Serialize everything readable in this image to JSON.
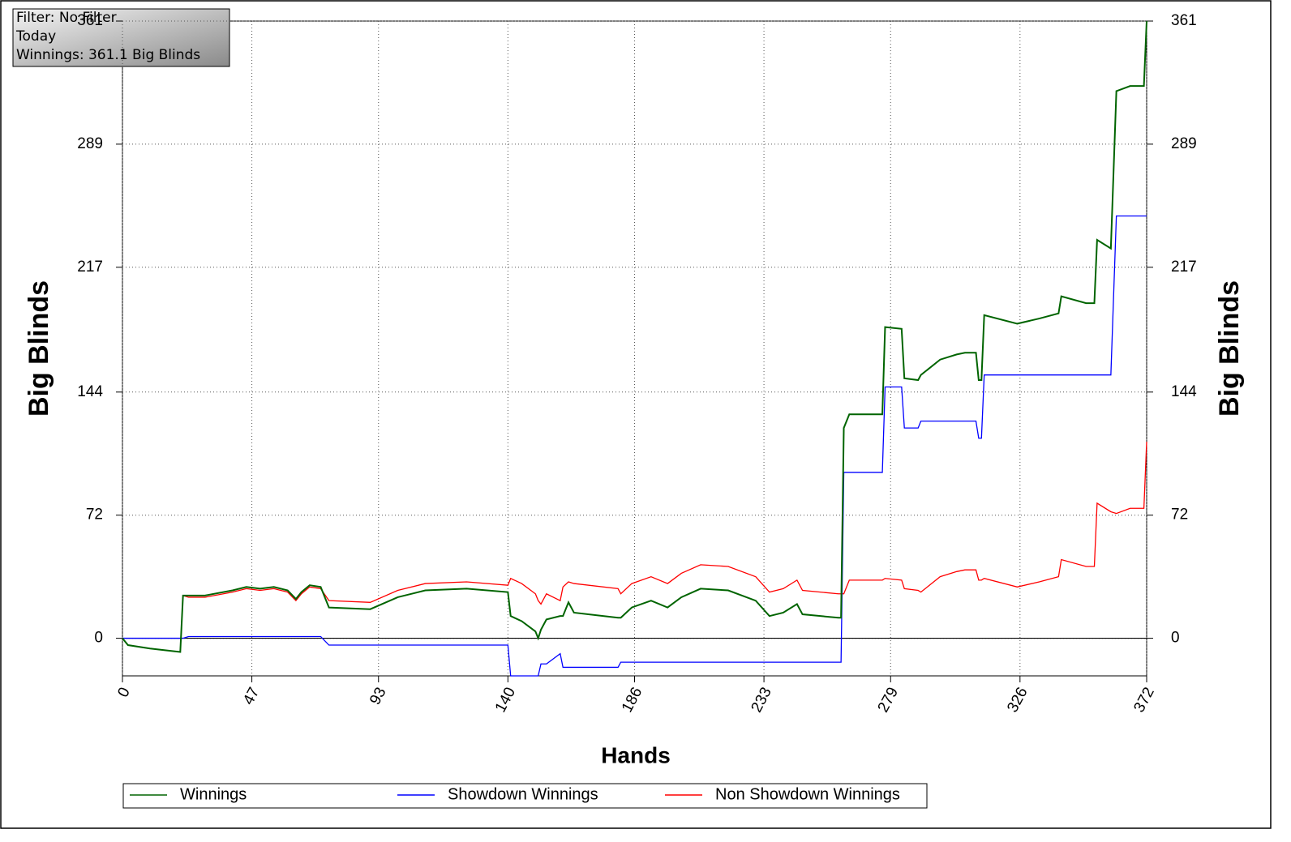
{
  "chart_data": {
    "type": "line",
    "annotations": [
      "Filter: No Filter",
      "Today",
      "Winnings: 361.1 Big Blinds"
    ],
    "xlabel": "Hands",
    "ylabel": "Big Blinds",
    "y2label": "Big Blinds",
    "xlim": [
      0,
      372
    ],
    "xticks": [
      0,
      47,
      93,
      140,
      186,
      233,
      279,
      326,
      372
    ],
    "ylim": [
      -22,
      361
    ],
    "yticks": [
      0,
      72,
      144,
      217,
      289,
      361
    ],
    "y2lim": [
      -22,
      361
    ],
    "y2ticks": [
      0,
      72,
      144,
      217,
      289,
      361
    ],
    "grid": true,
    "zero_line": true,
    "legend": "bottom",
    "x": [
      0,
      2,
      10,
      21,
      22,
      24,
      30,
      40,
      45,
      50,
      55,
      60,
      63,
      65,
      68,
      72,
      75,
      90,
      100,
      110,
      125,
      140,
      141,
      145,
      150,
      151,
      152,
      154,
      159,
      160,
      162,
      164,
      180,
      181,
      185,
      192,
      198,
      203,
      210,
      220,
      230,
      235,
      240,
      245,
      247,
      260,
      261,
      262,
      264,
      276,
      277,
      283,
      284,
      289,
      290,
      297,
      303,
      306,
      310,
      311,
      312,
      313,
      325,
      333,
      340,
      341,
      350,
      353,
      354,
      359,
      361,
      366,
      371,
      372
    ],
    "series": [
      {
        "name": "Winnings",
        "color": "#006400",
        "values": [
          0,
          -4,
          -6,
          -8,
          25,
          25,
          25,
          28,
          30,
          29,
          30,
          28,
          23,
          27,
          31,
          30,
          18,
          17,
          24,
          28,
          29,
          27,
          13,
          10,
          4,
          0,
          5,
          11,
          13,
          13,
          21,
          15,
          12,
          12,
          18,
          22,
          18,
          24,
          29,
          28,
          22,
          13,
          15,
          20,
          14,
          12,
          12,
          123,
          131,
          131,
          182,
          181,
          152,
          151,
          154,
          163,
          166,
          167,
          167,
          151,
          151,
          189,
          184,
          187,
          190,
          200,
          196,
          196,
          233,
          228,
          320,
          323,
          323,
          361
        ]
      },
      {
        "name": "Showdown Winnings",
        "color": "#0000ff",
        "values": [
          0,
          0,
          0,
          0,
          0,
          1,
          1,
          1,
          1,
          1,
          1,
          1,
          1,
          1,
          1,
          1,
          -4,
          -4,
          -4,
          -4,
          -4,
          -4,
          -22,
          -22,
          -22,
          -22,
          -15,
          -15,
          -9,
          -17,
          -17,
          -17,
          -17,
          -14,
          -14,
          -14,
          -14,
          -14,
          -14,
          -14,
          -14,
          -14,
          -14,
          -14,
          -14,
          -14,
          -14,
          97,
          97,
          97,
          147,
          147,
          123,
          123,
          127,
          127,
          127,
          127,
          127,
          117,
          117,
          154,
          154,
          154,
          154,
          154,
          154,
          154,
          154,
          154,
          247,
          247,
          247,
          247
        ]
      },
      {
        "name": "Non Showdown Winnings",
        "color": "#ff0000",
        "values": [
          0,
          -4,
          -6,
          -8,
          25,
          24,
          24,
          27,
          29,
          28,
          29,
          27,
          22,
          26,
          30,
          29,
          22,
          21,
          28,
          32,
          33,
          31,
          35,
          32,
          26,
          22,
          20,
          26,
          22,
          30,
          33,
          32,
          29,
          26,
          32,
          36,
          32,
          38,
          43,
          42,
          36,
          27,
          29,
          34,
          28,
          26,
          26,
          26,
          34,
          34,
          35,
          34,
          29,
          28,
          27,
          36,
          39,
          40,
          40,
          34,
          34,
          35,
          30,
          33,
          36,
          46,
          42,
          42,
          79,
          74,
          73,
          76,
          76,
          115
        ]
      }
    ]
  }
}
